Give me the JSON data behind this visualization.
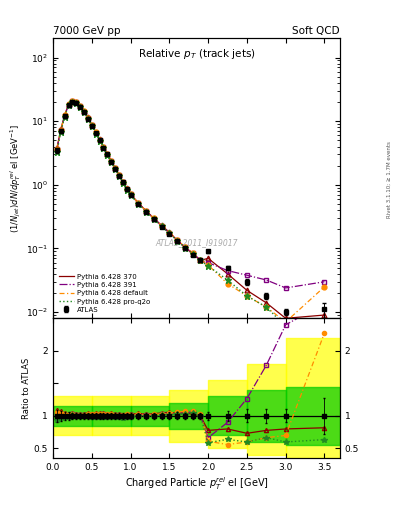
{
  "title_left": "7000 GeV pp",
  "title_right": "Soft QCD",
  "plot_title": "Relative $p_T$ (track jets)",
  "ylabel_main": "$(1/N_{jet})dN/dp_T^{rel}$ el [GeV$^{-1}$]",
  "ylabel_ratio": "Ratio to ATLAS",
  "xlabel": "Charged Particle $p_T^{rel}$ el [GeV]",
  "right_label": "Rivet 3.1.10; ≥ 1.7M events",
  "watermark": "ATLAS_2011_I919017",
  "atlas_x": [
    0.05,
    0.1,
    0.15,
    0.2,
    0.25,
    0.3,
    0.35,
    0.4,
    0.45,
    0.5,
    0.55,
    0.6,
    0.65,
    0.7,
    0.75,
    0.8,
    0.85,
    0.9,
    0.95,
    1.0,
    1.1,
    1.2,
    1.3,
    1.4,
    1.5,
    1.6,
    1.7,
    1.8,
    1.9,
    2.0,
    2.25,
    2.5,
    2.75,
    3.0,
    3.5
  ],
  "atlas_y": [
    3.5,
    7.0,
    12.0,
    18.0,
    20.0,
    19.5,
    17.0,
    14.0,
    11.0,
    8.5,
    6.5,
    5.0,
    3.8,
    3.0,
    2.3,
    1.8,
    1.4,
    1.1,
    0.85,
    0.7,
    0.5,
    0.38,
    0.29,
    0.22,
    0.17,
    0.13,
    0.1,
    0.08,
    0.065,
    0.09,
    0.05,
    0.03,
    0.018,
    0.01,
    0.011
  ],
  "atlas_ye": [
    0.3,
    0.5,
    0.8,
    1.0,
    1.0,
    0.9,
    0.8,
    0.7,
    0.5,
    0.4,
    0.3,
    0.25,
    0.2,
    0.15,
    0.12,
    0.09,
    0.07,
    0.055,
    0.043,
    0.035,
    0.025,
    0.019,
    0.015,
    0.011,
    0.009,
    0.007,
    0.005,
    0.004,
    0.003,
    0.006,
    0.004,
    0.003,
    0.002,
    0.001,
    0.003
  ],
  "py370_x": [
    0.05,
    0.1,
    0.15,
    0.2,
    0.25,
    0.3,
    0.35,
    0.4,
    0.45,
    0.5,
    0.55,
    0.6,
    0.65,
    0.7,
    0.75,
    0.8,
    0.85,
    0.9,
    0.95,
    1.0,
    1.1,
    1.2,
    1.3,
    1.4,
    1.5,
    1.6,
    1.7,
    1.8,
    1.9,
    2.0,
    2.25,
    2.5,
    2.75,
    3.0,
    3.5
  ],
  "py370_y": [
    3.8,
    7.5,
    12.5,
    18.5,
    21.0,
    20.0,
    17.5,
    14.5,
    11.5,
    8.8,
    6.8,
    5.2,
    4.0,
    3.1,
    2.4,
    1.85,
    1.45,
    1.12,
    0.88,
    0.72,
    0.52,
    0.39,
    0.3,
    0.23,
    0.18,
    0.135,
    0.105,
    0.082,
    0.065,
    0.07,
    0.04,
    0.022,
    0.014,
    0.008,
    0.009
  ],
  "py391_x": [
    0.05,
    0.1,
    0.15,
    0.2,
    0.25,
    0.3,
    0.35,
    0.4,
    0.45,
    0.5,
    0.55,
    0.6,
    0.65,
    0.7,
    0.75,
    0.8,
    0.85,
    0.9,
    0.95,
    1.0,
    1.1,
    1.2,
    1.3,
    1.4,
    1.5,
    1.6,
    1.7,
    1.8,
    1.9,
    2.0,
    2.25,
    2.5,
    2.75,
    3.0,
    3.5
  ],
  "py391_y": [
    3.6,
    7.2,
    12.2,
    18.2,
    20.5,
    19.8,
    17.2,
    14.2,
    11.2,
    8.6,
    6.6,
    5.1,
    3.9,
    3.05,
    2.35,
    1.82,
    1.42,
    1.1,
    0.86,
    0.71,
    0.51,
    0.385,
    0.295,
    0.225,
    0.175,
    0.135,
    0.105,
    0.085,
    0.066,
    0.06,
    0.045,
    0.038,
    0.032,
    0.024,
    0.03
  ],
  "pydef_x": [
    0.05,
    0.1,
    0.15,
    0.2,
    0.25,
    0.3,
    0.35,
    0.4,
    0.45,
    0.5,
    0.55,
    0.6,
    0.65,
    0.7,
    0.75,
    0.8,
    0.85,
    0.9,
    0.95,
    1.0,
    1.1,
    1.2,
    1.3,
    1.4,
    1.5,
    1.6,
    1.7,
    1.8,
    1.9,
    2.0,
    2.25,
    2.5,
    2.75,
    3.0,
    3.5
  ],
  "pydef_y": [
    3.7,
    7.3,
    12.3,
    18.3,
    20.7,
    19.9,
    17.3,
    14.3,
    11.3,
    8.7,
    6.7,
    5.15,
    3.92,
    3.07,
    2.37,
    1.83,
    1.43,
    1.11,
    0.87,
    0.715,
    0.515,
    0.388,
    0.297,
    0.227,
    0.177,
    0.138,
    0.107,
    0.086,
    0.067,
    0.055,
    0.028,
    0.018,
    0.012,
    0.007,
    0.025
  ],
  "pyproq2o_x": [
    0.05,
    0.1,
    0.15,
    0.2,
    0.25,
    0.3,
    0.35,
    0.4,
    0.45,
    0.5,
    0.55,
    0.6,
    0.65,
    0.7,
    0.75,
    0.8,
    0.85,
    0.9,
    0.95,
    1.0,
    1.1,
    1.2,
    1.3,
    1.4,
    1.5,
    1.6,
    1.7,
    1.8,
    1.9,
    2.0,
    2.25,
    2.5,
    2.75,
    3.0,
    3.5
  ],
  "pyproq2o_y": [
    3.3,
    6.8,
    11.8,
    17.8,
    20.2,
    19.5,
    17.0,
    14.0,
    11.0,
    8.4,
    6.4,
    4.9,
    3.75,
    2.95,
    2.28,
    1.76,
    1.38,
    1.07,
    0.84,
    0.69,
    0.5,
    0.378,
    0.29,
    0.222,
    0.172,
    0.133,
    0.103,
    0.083,
    0.065,
    0.053,
    0.032,
    0.018,
    0.012,
    0.006,
    0.007
  ],
  "atlas_color": "#000000",
  "py370_color": "#8b0000",
  "py391_color": "#800080",
  "pydef_color": "#ff8c00",
  "pyproq2o_color": "#228b22",
  "band_yellow": "#ffff00",
  "band_green": "#00cc00",
  "ylim_main": [
    0.008,
    200
  ],
  "ylim_ratio": [
    0.35,
    2.5
  ],
  "xlim": [
    0.0,
    3.7
  ],
  "band_edges": [
    0.0,
    0.5,
    1.0,
    1.5,
    2.0,
    2.5,
    3.0,
    3.7
  ],
  "band_green_lo": [
    0.85,
    0.85,
    0.85,
    0.8,
    0.7,
    0.6,
    0.55
  ],
  "band_green_hi": [
    1.15,
    1.15,
    1.15,
    1.2,
    1.3,
    1.4,
    1.45
  ],
  "band_yellow_lo": [
    0.7,
    0.7,
    0.7,
    0.6,
    0.5,
    0.4,
    0.35
  ],
  "band_yellow_hi": [
    1.3,
    1.3,
    1.3,
    1.4,
    1.55,
    1.8,
    2.2
  ]
}
